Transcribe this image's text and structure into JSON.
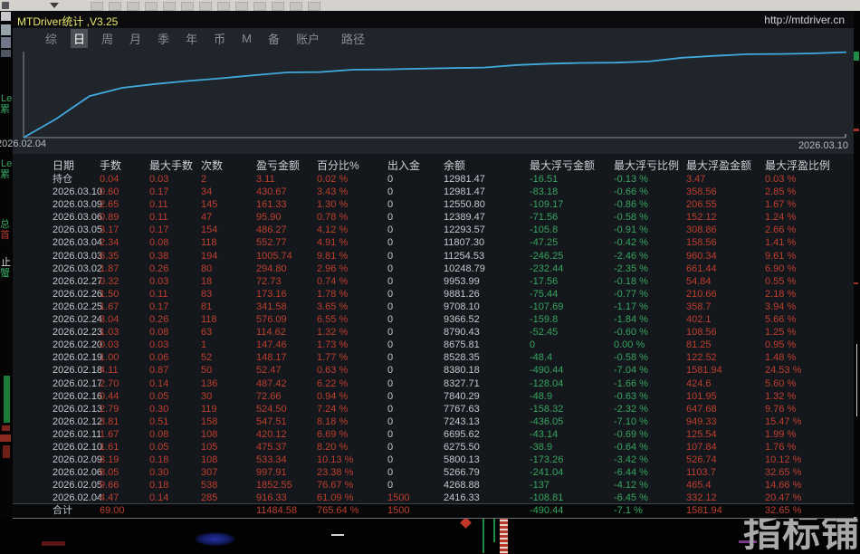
{
  "colors": {
    "accent_red": "#bf3f2e",
    "accent_green": "#37a45f",
    "curve": "#41aadd",
    "title_yellow": "#e8e868"
  },
  "window": {
    "title": "MTDriver统计 ,V3.25",
    "link": "http://mtdriver.cn",
    "tabs": [
      {
        "key": "zong",
        "label": "综",
        "active": false
      },
      {
        "key": "ri",
        "label": "日",
        "active": true
      },
      {
        "key": "zhou",
        "label": "周",
        "active": false
      },
      {
        "key": "yue",
        "label": "月",
        "active": false
      },
      {
        "key": "ji",
        "label": "季",
        "active": false
      },
      {
        "key": "nian",
        "label": "年",
        "active": false
      },
      {
        "key": "bi",
        "label": "币",
        "active": false
      },
      {
        "key": "m",
        "label": "M",
        "active": false
      },
      {
        "key": "bei",
        "label": "备",
        "active": false
      },
      {
        "key": "zhanghu",
        "label": "账户",
        "active": false
      }
    ],
    "path_label": "路径"
  },
  "chart_data": {
    "type": "line",
    "title": "",
    "x": [
      "2026.02.04",
      "2026.02.05",
      "2026.02.06",
      "2026.02.09",
      "2026.02.10",
      "2026.02.11",
      "2026.02.12",
      "2026.02.13",
      "2026.02.16",
      "2026.02.17",
      "2026.02.18",
      "2026.02.19",
      "2026.02.20",
      "2026.02.23",
      "2026.02.24",
      "2026.02.25",
      "2026.02.26",
      "2026.02.27",
      "2026.03.02",
      "2026.03.03",
      "2026.03.04",
      "2026.03.05",
      "2026.03.06",
      "2026.03.09",
      "2026.03.10"
    ],
    "balances": [
      2416.33,
      4268.88,
      5266.79,
      5800.13,
      6275.5,
      6695.62,
      7243.13,
      7767.63,
      7840.29,
      8327.71,
      8380.18,
      8528.35,
      8675.81,
      8790.43,
      9366.52,
      9708.1,
      9881.26,
      9953.99,
      10248.79,
      11254.53,
      11807.3,
      12293.57,
      12389.47,
      12550.8,
      12981.47
    ],
    "start_balance": 1500,
    "x_start_label": "2026.02.04",
    "x_end_label": "2026.03.10",
    "y_scale": "log",
    "y_range": [
      1500,
      13150
    ],
    "grid": false,
    "legend": false,
    "line_color": "#41aadd"
  },
  "table": {
    "headers": [
      "日期",
      "手数",
      "最大手数",
      "次数",
      "盈亏金额",
      "百分比%",
      "出入金",
      "余额",
      "最大浮亏金额",
      "最大浮亏比例",
      "最大浮盈金额",
      "最大浮盈比例"
    ],
    "rows": [
      [
        "持仓",
        "0.04",
        "0.03",
        "2",
        "3.11",
        "0.02 %",
        "0",
        "12981.47",
        "-16.51",
        "-0.13 %",
        "3.47",
        "0.03 %"
      ],
      [
        "2026.03.10",
        "0.60",
        "0.17",
        "34",
        "430.67",
        "3.43 %",
        "0",
        "12981.47",
        "-83.18",
        "-0.66 %",
        "358.56",
        "2.85 %"
      ],
      [
        "2026.03.09",
        "2.65",
        "0.11",
        "145",
        "161.33",
        "1.30 %",
        "0",
        "12550.80",
        "-109.17",
        "-0.86 %",
        "206.55",
        "1.67 %"
      ],
      [
        "2026.03.06",
        "0.89",
        "0.11",
        "47",
        "95.90",
        "0.78 %",
        "0",
        "12389.47",
        "-71.56",
        "-0.58 %",
        "152.12",
        "1.24 %"
      ],
      [
        "2026.03.05",
        "3.17",
        "0.17",
        "154",
        "486.27",
        "4.12 %",
        "0",
        "12293.57",
        "-105.8",
        "-0.91 %",
        "308.86",
        "2.66 %"
      ],
      [
        "2026.03.04",
        "2.34",
        "0.08",
        "118",
        "552.77",
        "4.91 %",
        "0",
        "11807.30",
        "-47.25",
        "-0.42 %",
        "158.56",
        "1.41 %"
      ],
      [
        "2026.03.03",
        "6.35",
        "0.38",
        "194",
        "1005.74",
        "9.81 %",
        "0",
        "11254.53",
        "-246.25",
        "-2.46 %",
        "960.34",
        "9.61 %"
      ],
      [
        "2026.03.02",
        "1.87",
        "0.26",
        "80",
        "294.80",
        "2.96 %",
        "0",
        "10248.79",
        "-232.44",
        "-2.35 %",
        "661.44",
        "6.90 %"
      ],
      [
        "2026.02.27",
        "0.32",
        "0.03",
        "18",
        "72.73",
        "0.74 %",
        "0",
        "9953.99",
        "-17.56",
        "-0.18 %",
        "54.84",
        "0.55 %"
      ],
      [
        "2026.02.26",
        "1.50",
        "0.11",
        "83",
        "173.16",
        "1.78 %",
        "0",
        "9881.26",
        "-75.44",
        "-0.77 %",
        "210.66",
        "2.18 %"
      ],
      [
        "2026.02.25",
        "1.67",
        "0.17",
        "81",
        "341.58",
        "3.65 %",
        "0",
        "9708.10",
        "-107.69",
        "-1.17 %",
        "358.7",
        "3.94 %"
      ],
      [
        "2026.02.24",
        "3.04",
        "0.26",
        "118",
        "576.09",
        "6.55 %",
        "0",
        "9366.52",
        "-159.8",
        "-1.84 %",
        "402.1",
        "5.66 %"
      ],
      [
        "2026.02.23",
        "1.03",
        "0.08",
        "63",
        "114.62",
        "1.32 %",
        "0",
        "8790.43",
        "-52.45",
        "-0.60 %",
        "108.56",
        "1.25 %"
      ],
      [
        "2026.02.20",
        "0.03",
        "0.03",
        "1",
        "147.46",
        "1.73 %",
        "0",
        "8675.81",
        "0",
        "0.00 %",
        "81.25",
        "0.95 %"
      ],
      [
        "2026.02.19",
        "1.00",
        "0.06",
        "52",
        "148.17",
        "1.77 %",
        "0",
        "8528.35",
        "-48.4",
        "-0.58 %",
        "122.52",
        "1.48 %"
      ],
      [
        "2026.02.18",
        "4.11",
        "0.87",
        "50",
        "52.47",
        "0.63 %",
        "0",
        "8380.18",
        "-490.44",
        "-7.04 %",
        "1581.94",
        "24.53 %"
      ],
      [
        "2026.02.17",
        "2.70",
        "0.14",
        "136",
        "487.42",
        "6.22 %",
        "0",
        "8327.71",
        "-128.04",
        "-1.66 %",
        "424.6",
        "5.60 %"
      ],
      [
        "2026.02.16",
        "0.44",
        "0.05",
        "30",
        "72.66",
        "0.94 %",
        "0",
        "7840.29",
        "-48.9",
        "-0.63 %",
        "101.95",
        "1.32 %"
      ],
      [
        "2026.02.13",
        "2.79",
        "0.30",
        "119",
        "524.50",
        "7.24 %",
        "0",
        "7767.63",
        "-158.32",
        "-2.32 %",
        "647.68",
        "9.76 %"
      ],
      [
        "2026.02.12",
        "3.81",
        "0.51",
        "158",
        "547.51",
        "8.18 %",
        "0",
        "7243.13",
        "-436.05",
        "-7.10 %",
        "949.33",
        "15.47 %"
      ],
      [
        "2026.02.11",
        "1.67",
        "0.08",
        "108",
        "420.12",
        "6.69 %",
        "0",
        "6695.62",
        "-43.14",
        "-0.69 %",
        "125.54",
        "1.99 %"
      ],
      [
        "2026.02.10",
        "1.61",
        "0.05",
        "105",
        "475.37",
        "8.20 %",
        "0",
        "6275.50",
        "-38.9",
        "-0.64 %",
        "107.84",
        "1.76 %"
      ],
      [
        "2026.02.09",
        "3.19",
        "0.18",
        "108",
        "533.34",
        "10.13 %",
        "0",
        "5800.13",
        "-173.26",
        "-3.42 %",
        "526.74",
        "10.12 %"
      ],
      [
        "2026.02.06",
        "8.05",
        "0.30",
        "307",
        "997.91",
        "23.38 %",
        "0",
        "5266.79",
        "-241.04",
        "-6.44 %",
        "1103.7",
        "32.65 %"
      ],
      [
        "2026.02.05",
        "9.66",
        "0.18",
        "538",
        "1852.55",
        "76.67 %",
        "0",
        "4268.88",
        "-137",
        "-4.12 %",
        "465.4",
        "14.66 %"
      ],
      [
        "2026.02.04",
        "4.47",
        "0.14",
        "285",
        "916.33",
        "61.09 %",
        "1500",
        "2416.33",
        "-108.81",
        "-6.45 %",
        "332.12",
        "20.47 %"
      ]
    ],
    "total": [
      "合计",
      "69.00",
      "",
      "",
      "11484.58",
      "765.64 %",
      "1500",
      "",
      "-490.44",
      "-7.1 %",
      "1581.94",
      "32.65 %"
    ]
  },
  "background": {
    "watermark": "指标铺",
    "left_edge_fragments": [
      "Le",
      "累",
      "Le",
      "累",
      "总",
      "首",
      "止",
      "蟹"
    ]
  }
}
